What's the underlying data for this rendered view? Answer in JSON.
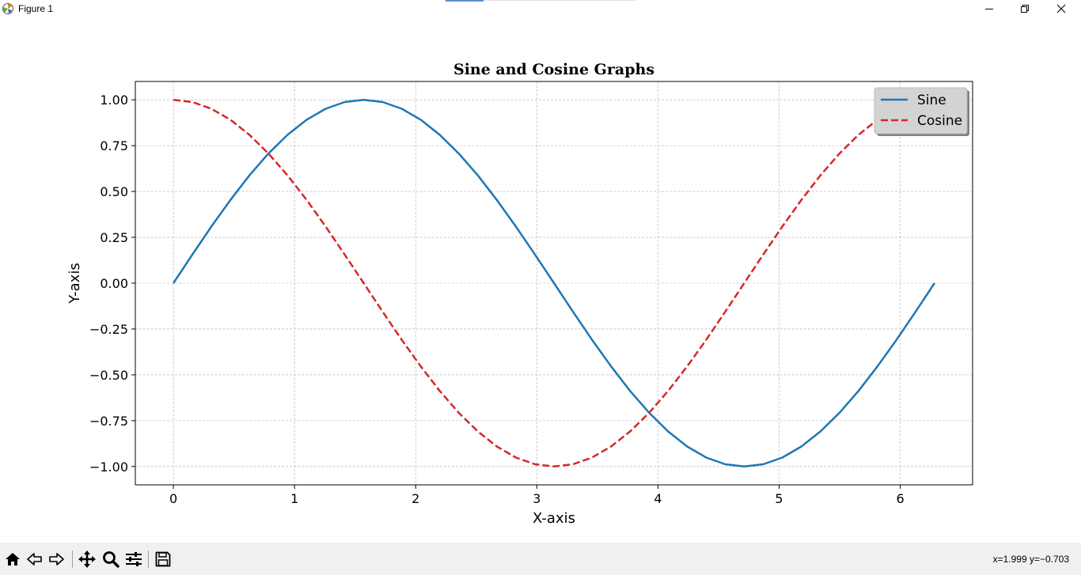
{
  "window": {
    "title": "Figure 1",
    "controls": [
      "minimize",
      "restore",
      "close"
    ]
  },
  "toolbar": {
    "buttons": [
      "home-icon",
      "back-icon",
      "forward-icon",
      "pan-icon",
      "zoom-icon",
      "configure-subplots-icon",
      "save-icon"
    ],
    "coords_readout": "x=1.999 y=−0.703"
  },
  "colors": {
    "sine": "#1f77b4",
    "cosine": "#d62728",
    "grid": "#b0b0b0",
    "legend_bg": "#d3d3d3",
    "toolbar_bg": "#f0f0f0"
  },
  "chart_data": {
    "type": "line",
    "title": "Sine and Cosine Graphs",
    "xlabel": "X-axis",
    "ylabel": "Y-axis",
    "xlim": [
      -0.314,
      6.597
    ],
    "ylim": [
      -1.1,
      1.1
    ],
    "xticks": [
      0,
      1,
      2,
      3,
      4,
      5,
      6
    ],
    "xtick_labels": [
      "0",
      "1",
      "2",
      "3",
      "4",
      "5",
      "6"
    ],
    "yticks": [
      1.0,
      0.75,
      0.5,
      0.25,
      0.0,
      -0.25,
      -0.5,
      -0.75,
      -1.0
    ],
    "ytick_labels": [
      "1.00",
      "0.75",
      "0.50",
      "0.25",
      "0.00",
      "−0.25",
      "−0.50",
      "−0.75",
      "−1.00"
    ],
    "grid": true,
    "legend": {
      "placement": "top-right",
      "entries": [
        "Sine",
        "Cosine"
      ]
    },
    "x": [
      0,
      0.157,
      0.314,
      0.471,
      0.628,
      0.785,
      0.942,
      1.1,
      1.257,
      1.414,
      1.571,
      1.728,
      1.885,
      2.042,
      2.199,
      2.356,
      2.513,
      2.67,
      2.827,
      2.985,
      3.142,
      3.299,
      3.456,
      3.613,
      3.77,
      3.927,
      4.084,
      4.241,
      4.398,
      4.555,
      4.712,
      4.869,
      5.027,
      5.184,
      5.341,
      5.498,
      5.655,
      5.812,
      5.969,
      6.126,
      6.283
    ],
    "series": [
      {
        "name": "Sine",
        "style": "solid",
        "color": "#1f77b4",
        "values": [
          0,
          0.156,
          0.309,
          0.454,
          0.588,
          0.707,
          0.809,
          0.891,
          0.951,
          0.988,
          1.0,
          0.988,
          0.951,
          0.891,
          0.809,
          0.707,
          0.588,
          0.454,
          0.309,
          0.156,
          0,
          -0.156,
          -0.309,
          -0.454,
          -0.588,
          -0.707,
          -0.809,
          -0.891,
          -0.951,
          -0.988,
          -1.0,
          -0.988,
          -0.951,
          -0.891,
          -0.809,
          -0.707,
          -0.588,
          -0.454,
          -0.309,
          -0.156,
          0
        ]
      },
      {
        "name": "Cosine",
        "style": "dashed",
        "color": "#d62728",
        "values": [
          1.0,
          0.988,
          0.951,
          0.891,
          0.809,
          0.707,
          0.588,
          0.454,
          0.309,
          0.156,
          0,
          -0.156,
          -0.309,
          -0.454,
          -0.588,
          -0.707,
          -0.809,
          -0.891,
          -0.951,
          -0.988,
          -1.0,
          -0.988,
          -0.951,
          -0.891,
          -0.809,
          -0.707,
          -0.588,
          -0.454,
          -0.309,
          -0.156,
          0,
          0.156,
          0.309,
          0.454,
          0.588,
          0.707,
          0.809,
          0.891,
          0.951,
          0.988,
          1.0
        ]
      }
    ]
  }
}
